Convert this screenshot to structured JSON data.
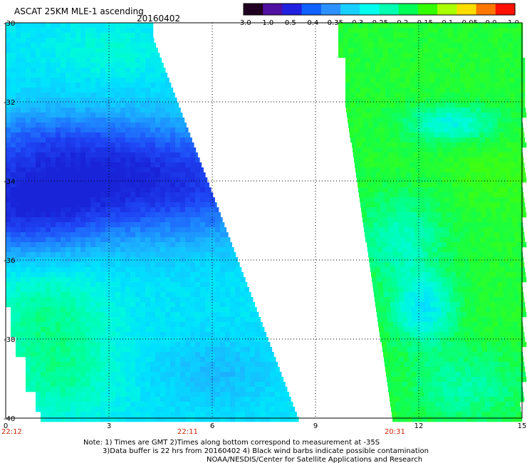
{
  "header": {
    "title": "ASCAT 25KM MLE-1 ascending",
    "date": "20160402"
  },
  "colorbar": {
    "labels": [
      "-3.0",
      "-1.0",
      "-0.5",
      "-0.4",
      "-0.35",
      "-0.3",
      "-0.25",
      "-0.2",
      "-0.15",
      "-0.1",
      "-0.05",
      "0.0",
      "1.0"
    ],
    "colors": [
      "#200020",
      "#5010a0",
      "#2020e0",
      "#1060ff",
      "#2c90ff",
      "#18d0ff",
      "#00ffee",
      "#00ffb0",
      "#00ff55",
      "#33ff00",
      "#aaff00",
      "#ffdd00",
      "#ff7700",
      "#ff1000"
    ]
  },
  "map": {
    "lat_labels": [
      "-30",
      "-32",
      "-34",
      "-36",
      "-38",
      "-40"
    ],
    "lon_labels": [
      "0",
      "3",
      "6",
      "9",
      "12",
      "15"
    ],
    "times": [
      "22:12",
      "22:11",
      "20:31"
    ]
  },
  "notes": {
    "line1": "Note: 1) Times are GMT 2)Times along bottom correspond to measurement at -35S",
    "line2": "3)Data buffer is 22 hrs from 20160402 4) Black wind barbs indicate possible contamination",
    "line3": "NOAA/NESDIS/Center for Satellite Applications and Research"
  }
}
